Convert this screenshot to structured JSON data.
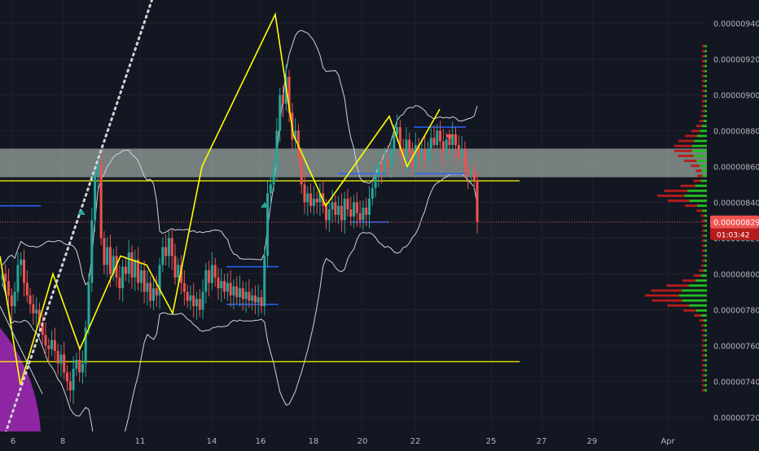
{
  "chart_data": {
    "type": "candlestick",
    "title": "",
    "xlabel": "",
    "ylabel": "",
    "ylim": [
      7.12e-06,
      9.53e-06
    ],
    "grid": true,
    "x_tick_labels": [
      "6",
      "8",
      "11",
      "14",
      "16",
      "18",
      "20",
      "22",
      "25",
      "27",
      "29",
      "Apr"
    ],
    "y_tick_labels": [
      "0.00000720",
      "0.00000740",
      "0.00000760",
      "0.00000780",
      "0.00000800",
      "0.00000820",
      "0.00000840",
      "0.00000860",
      "0.00000880",
      "0.00000900",
      "0.00000920",
      "0.00000940"
    ],
    "y_tick_values": [
      7.2e-06,
      7.4e-06,
      7.6e-06,
      7.8e-06,
      8e-06,
      8.2e-06,
      8.4e-06,
      8.6e-06,
      8.8e-06,
      9e-06,
      9.2e-06,
      9.4e-06
    ],
    "candles_close": [
      8e-06,
      7.96e-06,
      7.88e-06,
      7.82e-06,
      7.9e-06,
      8.05e-06,
      8.08e-06,
      7.95e-06,
      7.88e-06,
      7.83e-06,
      7.78e-06,
      7.8e-06,
      7.72e-06,
      7.66e-06,
      7.6e-06,
      7.58e-06,
      7.63e-06,
      7.57e-06,
      7.5e-06,
      7.55e-06,
      7.45e-06,
      7.4e-06,
      7.35e-06,
      7.47e-06,
      7.52e-06,
      7.45e-06,
      7.5e-06,
      7.7e-06,
      7.95e-06,
      8.3e-06,
      8.55e-06,
      8.62e-06,
      8.2e-06,
      8.05e-06,
      8.15e-06,
      8e-06,
      8.1e-06,
      7.98e-06,
      7.92e-06,
      8.04e-06,
      8e-06,
      8.12e-06,
      7.98e-06,
      8.08e-06,
      7.95e-06,
      8.02e-06,
      7.9e-06,
      7.95e-06,
      7.85e-06,
      7.92e-06,
      7.88e-06,
      8.05e-06,
      8.15e-06,
      8.1e-06,
      8.2e-06,
      8.1e-06,
      7.98e-06,
      8.05e-06,
      7.95e-06,
      7.9e-06,
      7.85e-06,
      7.88e-06,
      7.82e-06,
      7.86e-06,
      7.8e-06,
      7.9e-06,
      8.02e-06,
      7.95e-06,
      8.05e-06,
      7.98e-06,
      7.92e-06,
      7.96e-06,
      7.9e-06,
      7.95e-06,
      7.88e-06,
      7.93e-06,
      7.87e-06,
      7.92e-06,
      7.86e-06,
      7.9e-06,
      7.85e-06,
      7.88e-06,
      7.84e-06,
      7.87e-06,
      7.82e-06,
      8.1e-06,
      8.45e-06,
      8.5e-06,
      8.58e-06,
      8.8e-06,
      9e-06,
      8.95e-06,
      9.1e-06,
      8.9e-06,
      8.75e-06,
      8.8e-06,
      8.65e-06,
      8.5e-06,
      8.4e-06,
      8.45e-06,
      8.38e-06,
      8.42e-06,
      8.4e-06,
      8.45e-06,
      8.38e-06,
      8.3e-06,
      8.36e-06,
      8.4e-06,
      8.33e-06,
      8.38e-06,
      8.3e-06,
      8.42e-06,
      8.36e-06,
      8.32e-06,
      8.4e-06,
      8.34e-06,
      8.3e-06,
      8.37e-06,
      8.33e-06,
      8.42e-06,
      8.48e-06,
      8.55e-06,
      8.62e-06,
      8.58e-06,
      8.65e-06,
      8.6e-06,
      8.7e-06,
      8.78e-06,
      8.82e-06,
      8.7e-06,
      8.65e-06,
      8.75e-06,
      8.68e-06,
      8.6e-06,
      8.72e-06,
      8.66e-06,
      8.7e-06,
      8.64e-06,
      8.7e-06,
      8.76e-06,
      8.72e-06,
      8.8e-06,
      8.74e-06,
      8.68e-06,
      8.75e-06,
      8.72e-06,
      8.78e-06,
      8.72e-06,
      8.65e-06,
      8.7e-06,
      8.6e-06,
      8.55e-06,
      8.58e-06,
      8.52e-06,
      8.29e-06
    ],
    "current_price": "0.00000829",
    "countdown": "01:03:42",
    "zigzag_pattern_prices": [
      8.1e-06,
      7.38e-06,
      8e-06,
      7.58e-06,
      8.1e-06,
      8.05e-06,
      7.78e-06,
      8.6e-06,
      9.45e-06,
      8.78e-06,
      8.38e-06,
      8.88e-06,
      8.6e-06,
      8.92e-06
    ],
    "support_resistance_levels": [
      8.52e-06,
      7.51e-06
    ],
    "resistance_zone": [
      8.54e-06,
      8.7e-06
    ],
    "colors": {
      "background": "#131722",
      "up": "#26a69a",
      "down": "#ef5350",
      "zigzag": "#ffff00",
      "bollinger": "#cfd3dc",
      "zone": "#c8d6c8",
      "volume_profile_buy": "#20c020",
      "volume_profile_sell": "#b71c1c",
      "price_label": "#ef5350",
      "trend_dots": "#cfd3dc",
      "fib_arc": "#9c27b0",
      "blue_lines": "#2962ff"
    }
  }
}
